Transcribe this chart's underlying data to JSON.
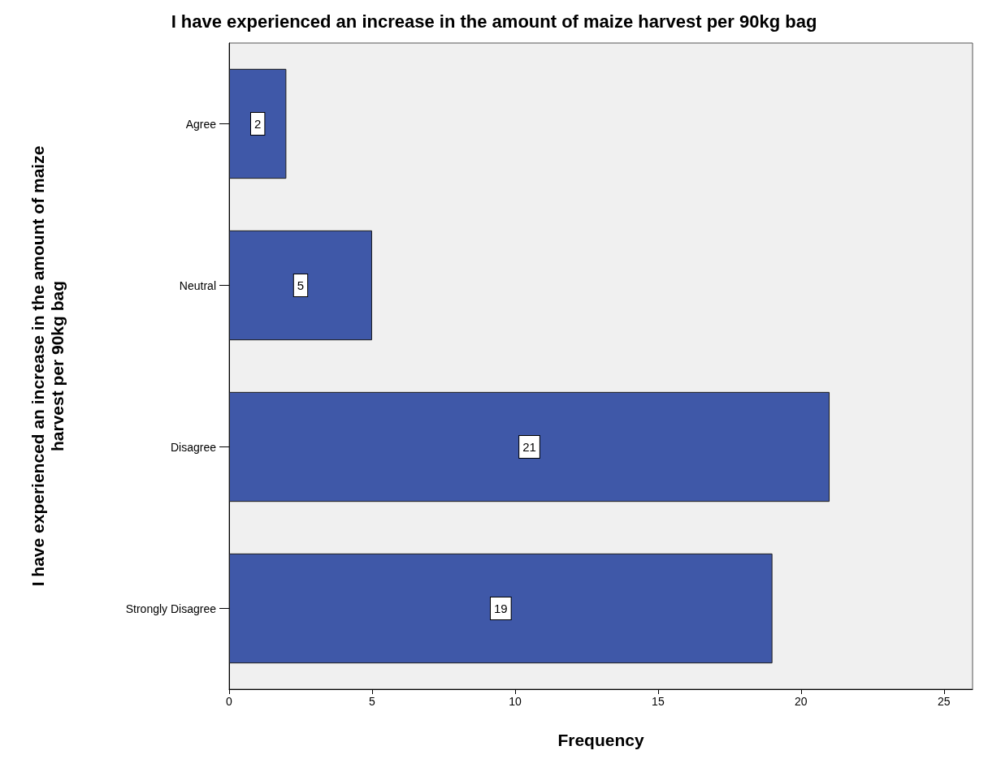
{
  "chart_data": {
    "type": "bar",
    "orientation": "horizontal",
    "title": "I have experienced an increase in the amount of maize harvest per 90kg bag",
    "xlabel": "Frequency",
    "ylabel": "I have experienced an increase in the amount of maize harvest per 90kg bag",
    "categories": [
      "Agree",
      "Neutral",
      "Disagree",
      "Strongly Disagree"
    ],
    "values": [
      2,
      5,
      21,
      19
    ],
    "color": "#3f58a8",
    "xlim": [
      0,
      26
    ],
    "xticks": [
      0,
      5,
      10,
      15,
      20,
      25
    ],
    "grid": false,
    "data_labels": true
  }
}
